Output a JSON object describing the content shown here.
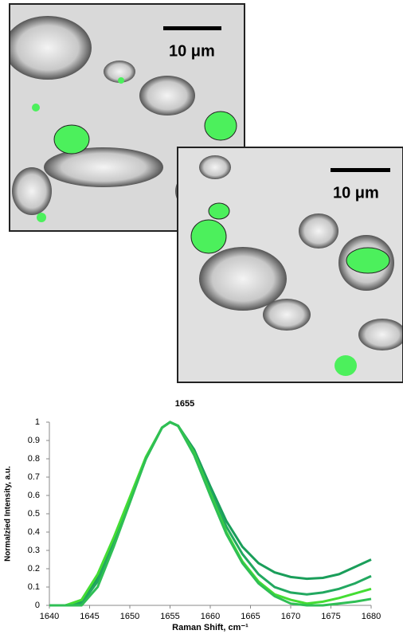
{
  "images": [
    {
      "scale_label": "10 μm"
    },
    {
      "scale_label": "10 μm"
    }
  ],
  "chart_data": {
    "type": "line",
    "title": "1655",
    "x_label": "Raman Shift, cm⁻¹",
    "y_label": "Normalzied Intensity, a.u.",
    "x": [
      1640,
      1642,
      1644,
      1646,
      1648,
      1650,
      1652,
      1654,
      1655,
      1656,
      1658,
      1660,
      1662,
      1664,
      1666,
      1668,
      1670,
      1672,
      1674,
      1676,
      1678,
      1680
    ],
    "series": [
      {
        "color": "#1a9e5a",
        "values": [
          0,
          0,
          0.02,
          0.15,
          0.35,
          0.57,
          0.8,
          0.97,
          1,
          0.98,
          0.85,
          0.65,
          0.46,
          0.32,
          0.23,
          0.18,
          0.155,
          0.145,
          0.15,
          0.17,
          0.21,
          0.25
        ]
      },
      {
        "color": "#22a860",
        "values": [
          0,
          0,
          0.01,
          0.13,
          0.34,
          0.57,
          0.8,
          0.97,
          1,
          0.98,
          0.84,
          0.63,
          0.43,
          0.28,
          0.17,
          0.1,
          0.07,
          0.06,
          0.07,
          0.09,
          0.12,
          0.16
        ]
      },
      {
        "color": "#44dd33",
        "values": [
          0,
          0,
          0.03,
          0.17,
          0.37,
          0.59,
          0.81,
          0.97,
          1,
          0.98,
          0.83,
          0.61,
          0.4,
          0.24,
          0.13,
          0.06,
          0.03,
          0.01,
          0.02,
          0.04,
          0.065,
          0.09
        ]
      },
      {
        "color": "#2fbf55",
        "values": [
          0,
          0,
          0,
          0.1,
          0.32,
          0.56,
          0.8,
          0.97,
          1,
          0.98,
          0.82,
          0.6,
          0.39,
          0.23,
          0.12,
          0.05,
          0.01,
          0,
          0,
          0.01,
          0.02,
          0.035
        ]
      }
    ],
    "xlim": [
      1640,
      1680
    ],
    "xticks": [
      1640,
      1645,
      1650,
      1655,
      1660,
      1665,
      1670,
      1675,
      1680
    ],
    "ylim": [
      0,
      1
    ],
    "yticks": [
      0,
      0.1,
      0.2,
      0.3,
      0.4,
      0.5,
      0.6,
      0.7,
      0.8,
      0.9,
      1
    ],
    "grid": false
  }
}
